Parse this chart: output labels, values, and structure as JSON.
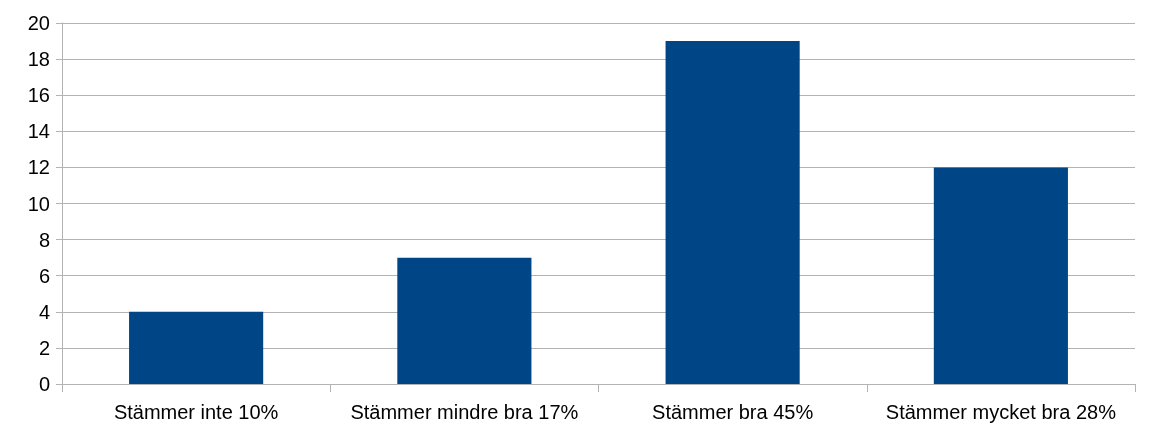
{
  "chart_data": {
    "type": "bar",
    "categories": [
      "Stämmer inte 10%",
      "Stämmer mindre bra 17%",
      "Stämmer bra 45%",
      "Stämmer mycket bra 28%"
    ],
    "values": [
      4,
      7,
      19,
      12
    ],
    "color": "#004586",
    "ylim": [
      0,
      20
    ],
    "yticks": [
      0,
      2,
      4,
      6,
      8,
      10,
      12,
      14,
      16,
      18,
      20
    ],
    "grid": "y"
  }
}
